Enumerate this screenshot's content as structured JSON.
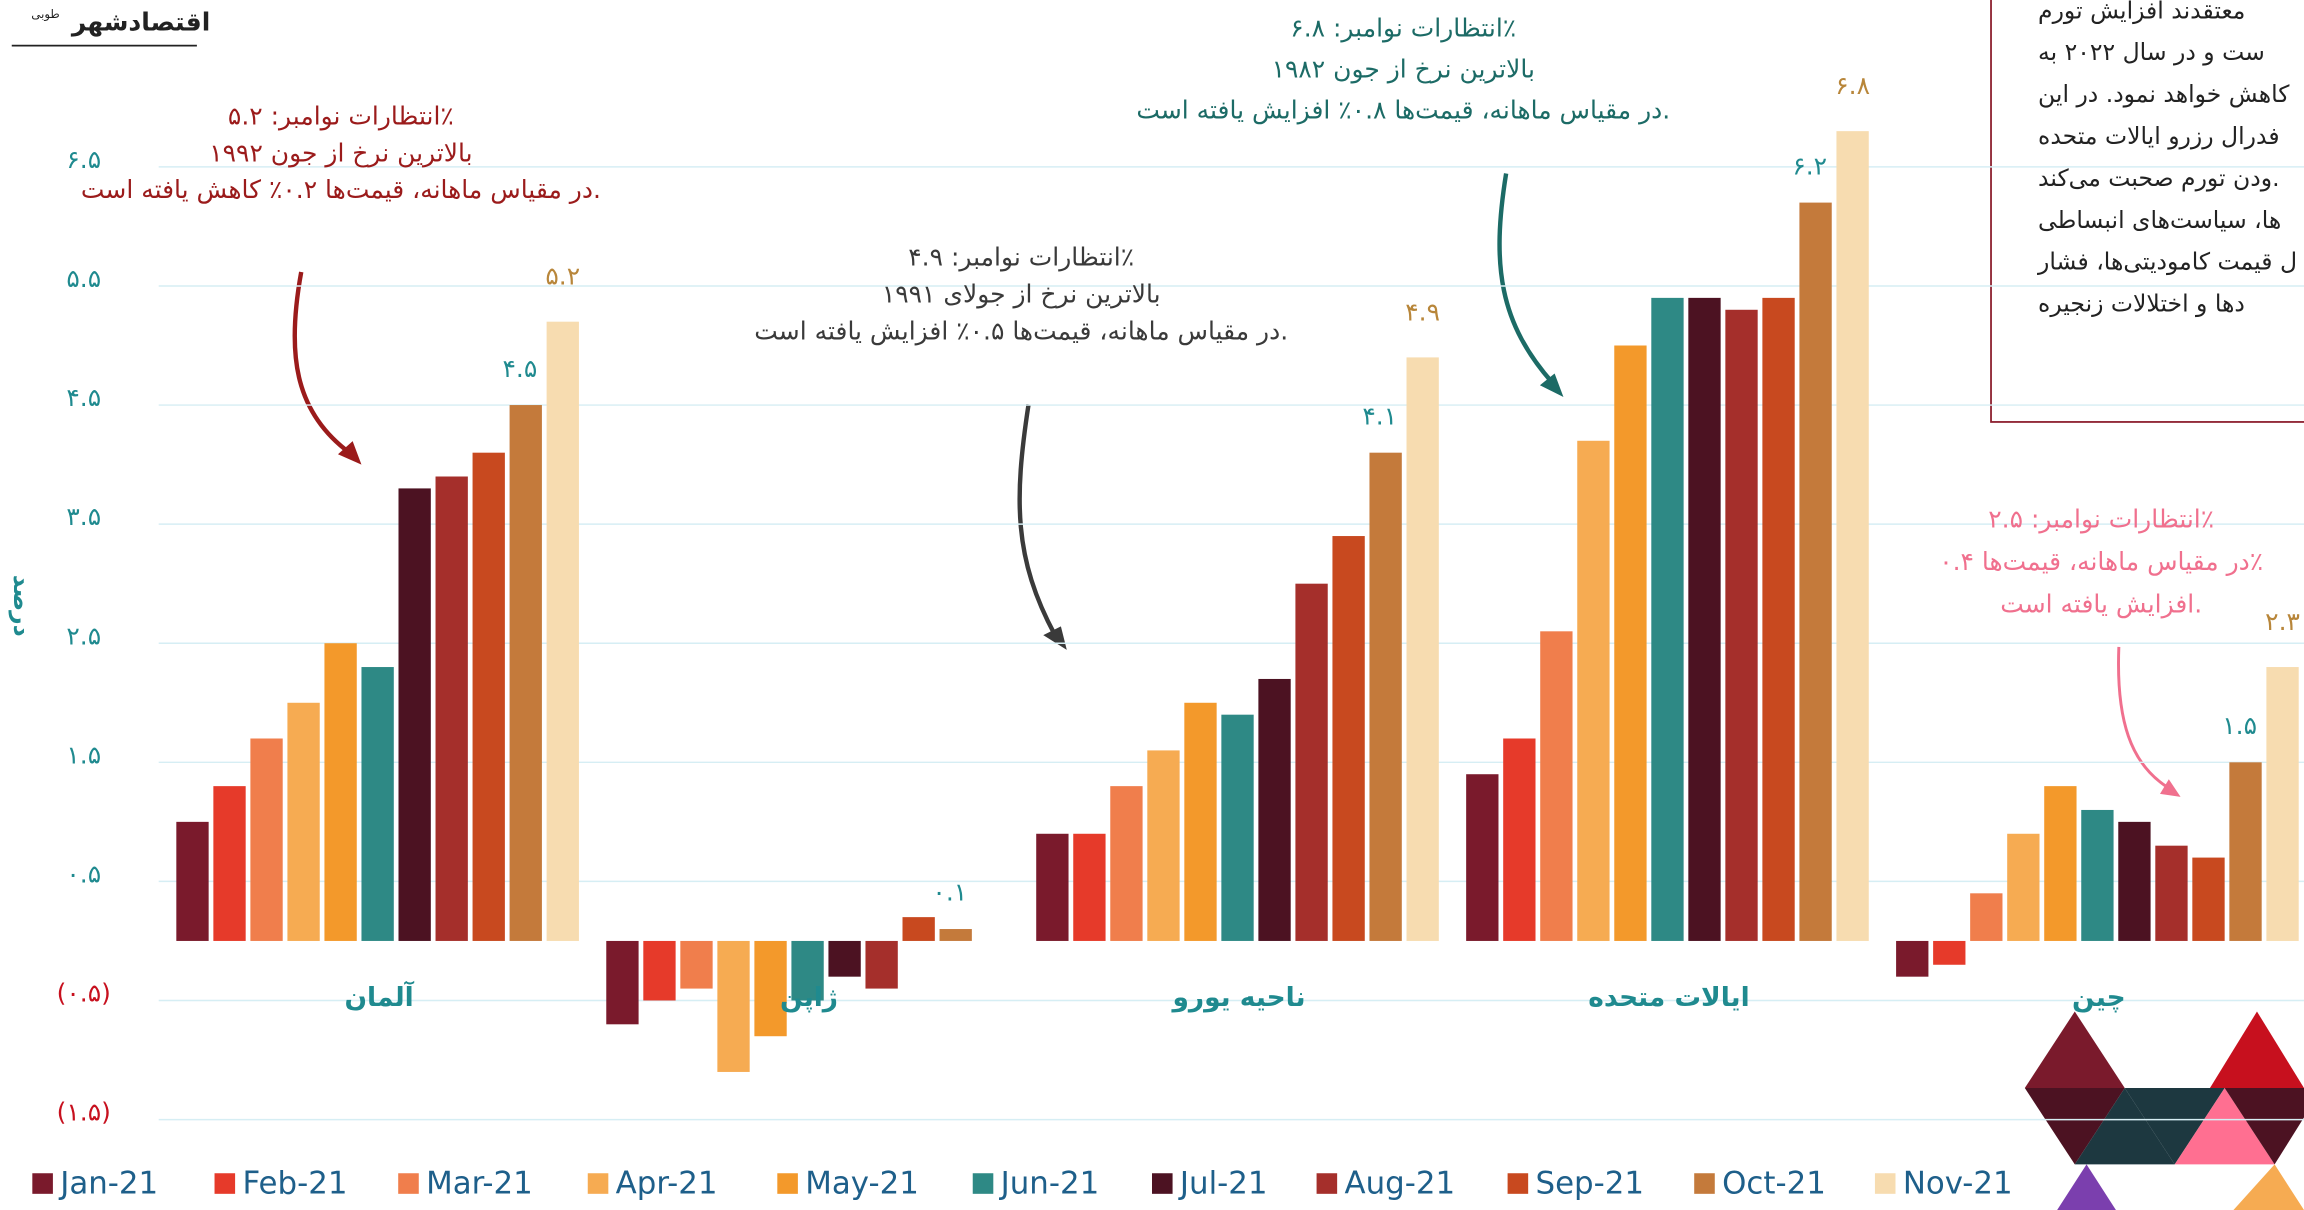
{
  "chart_data": {
    "type": "bar",
    "brand": "اقتصادشهر",
    "brand_sub": "طوبی",
    "y_label": "درصد",
    "categories": [
      "آلمان",
      "ژاپن",
      "ناحیه یورو",
      "ایالات متحده",
      "چین"
    ],
    "ylim": [
      -2,
      6.8
    ],
    "yticks": [
      {
        "value": 6.5,
        "label": "۶.۵"
      },
      {
        "value": 5.5,
        "label": "۵.۵"
      },
      {
        "value": 4.5,
        "label": "۴.۵"
      },
      {
        "value": 3.5,
        "label": "۳.۵"
      },
      {
        "value": 2.5,
        "label": "۲.۵"
      },
      {
        "value": 1.5,
        "label": "۱.۵"
      },
      {
        "value": 0.5,
        "label": "۰.۵"
      },
      {
        "value": -0.5,
        "label": "(۰.۵)"
      },
      {
        "value": -1.5,
        "label": "(۱.۵)"
      }
    ],
    "grid": true,
    "series": [
      {
        "name": "Jan-21",
        "color": "#7a1a2c",
        "values": [
          1.0,
          -0.7,
          0.9,
          1.4,
          -0.3
        ]
      },
      {
        "name": "Feb-21",
        "color": "#e63a2a",
        "values": [
          1.3,
          -0.5,
          0.9,
          1.7,
          -0.2
        ]
      },
      {
        "name": "Mar-21",
        "color": "#f07e4c",
        "values": [
          1.7,
          -0.4,
          1.3,
          2.6,
          0.4
        ]
      },
      {
        "name": "Apr-21",
        "color": "#f6ab52",
        "values": [
          2.0,
          -1.1,
          1.6,
          4.2,
          0.9
        ]
      },
      {
        "name": "May-21",
        "color": "#f3992b",
        "values": [
          2.5,
          -0.8,
          2.0,
          5.0,
          1.3
        ]
      },
      {
        "name": "Jun-21",
        "color": "#2e8985",
        "values": [
          2.3,
          -0.5,
          1.9,
          5.4,
          1.1
        ]
      },
      {
        "name": "Jul-21",
        "color": "#4c1222",
        "values": [
          3.8,
          -0.3,
          2.2,
          5.4,
          1.0
        ]
      },
      {
        "name": "Aug-21",
        "color": "#a52f2b",
        "values": [
          3.9,
          -0.4,
          3.0,
          5.3,
          0.8
        ]
      },
      {
        "name": "Sep-21",
        "color": "#c8491f",
        "values": [
          4.1,
          0.2,
          3.4,
          5.4,
          0.7
        ]
      },
      {
        "name": "Oct-21",
        "color": "#c47a3b",
        "values": [
          4.5,
          0.1,
          4.1,
          6.2,
          1.5
        ],
        "value_labels": [
          "۴.۵",
          "۰.۱",
          "۴.۱",
          "۶.۲",
          "۱.۵"
        ]
      },
      {
        "name": "Nov-21",
        "color": "#f7dcb0",
        "values": [
          5.2,
          null,
          4.9,
          6.8,
          2.3
        ],
        "value_labels": [
          "۵.۲",
          null,
          "۴.۹",
          "۶.۸",
          "۲.۳"
        ]
      }
    ],
    "annotations": [
      {
        "color": "#9b1b1b",
        "lines": [
          "انتظارات نوامبر: ۵.۲٪",
          "بالاترین نرخ از جون ۱۹۹۲",
          "در مقیاس ماهانه، قیمت‌ها ۰.۲٪ کاهش یافته است."
        ]
      },
      {
        "color": "#3a3a3a",
        "lines": [
          "انتظارات نوامبر: ۴.۹٪",
          "بالاترین نرخ از جولای ۱۹۹۱",
          "در مقیاس ماهانه، قیمت‌ها ۰.۵٪ افزایش یافته است."
        ]
      },
      {
        "color": "#1c6b66",
        "lines": [
          "انتظارات نوامبر: ۶.۸٪",
          "بالاترین نرخ از جون ۱۹۸۲",
          "در مقیاس ماهانه، قیمت‌ها ۰.۸٪ افزایش یافته است."
        ]
      },
      {
        "color": "#f0708e",
        "lines": [
          "انتظارات نوامبر: ۲.۵٪",
          "در مقیاس ماهانه، قیمت‌ها ۰.۴٪",
          "افزایش یافته است."
        ]
      }
    ],
    "note_lines": [
      "معتقدند افزایش تورم",
      "ست و در سال ۲۰۲۲ به",
      "کاهش خواهد نمود. در این",
      "فدرال رزرو ایالات متحده",
      "ودن تورم صحبت می‌کند.",
      "ها، سیاست‌های انبساطی",
      "ل قیمت کامودیتی‌ها، فشار",
      "دها و اختلالات زنجیره"
    ]
  }
}
